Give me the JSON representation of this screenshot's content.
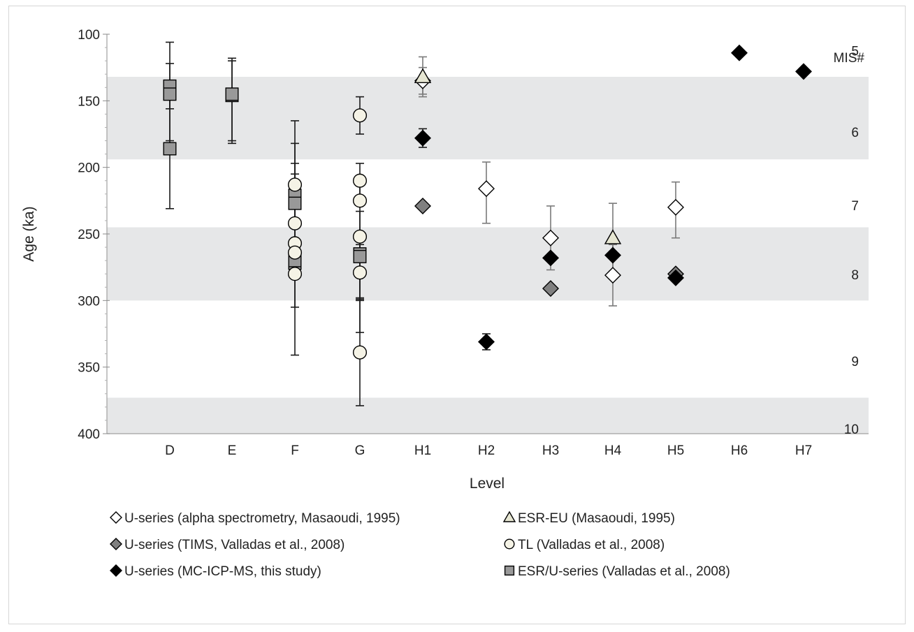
{
  "chart_data": {
    "type": "scatter",
    "xlabel": "Level",
    "ylabel": "Age (ka)",
    "ylim": [
      100,
      400
    ],
    "y_inverted": true,
    "y_ticks": [
      100,
      150,
      200,
      250,
      300,
      350,
      400
    ],
    "categories": [
      "D",
      "E",
      "F",
      "G",
      "H1",
      "H2",
      "H3",
      "H4",
      "H5",
      "H6",
      "H7"
    ],
    "mis_label": "MIS#",
    "mis_bands": [
      {
        "label": "5",
        "y": 104,
        "shaded": false
      },
      {
        "label": "6",
        "y": 165,
        "range": [
          132,
          194
        ],
        "shaded": true
      },
      {
        "label": "7",
        "y": 220,
        "shaded": false
      },
      {
        "label": "8",
        "y": 272,
        "range": [
          245,
          300
        ],
        "shaded": true
      },
      {
        "label": "9",
        "y": 337,
        "shaded": false
      },
      {
        "label": "10",
        "y": 388,
        "range": [
          373,
          400
        ],
        "shaded": true
      }
    ],
    "legend_placement": "bottom",
    "series": [
      {
        "name": "U-series (alpha spectrometry, Masaoudi, 1995)",
        "marker": "diamond",
        "fill": "#ffffff",
        "points": [
          {
            "x": "H1",
            "y": 135,
            "err": [
              125,
              145
            ]
          },
          {
            "x": "H2",
            "y": 216,
            "err": [
              196,
              242
            ]
          },
          {
            "x": "H3",
            "y": 253,
            "err": [
              229,
              277
            ]
          },
          {
            "x": "H4",
            "y": 281,
            "err": [
              258,
              304
            ]
          },
          {
            "x": "H5",
            "y": 230,
            "err": [
              211,
              253
            ]
          }
        ]
      },
      {
        "name": "ESR-EU (Masaoudi, 1995)",
        "marker": "triangle",
        "fill": "#e6e6d2",
        "points": [
          {
            "x": "H1",
            "y": 132,
            "err": [
              117,
              147
            ]
          },
          {
            "x": "H4",
            "y": 253,
            "err": [
              227,
              278
            ]
          }
        ]
      },
      {
        "name": "U-series (TIMS, Valladas et al., 2008)",
        "marker": "diamond",
        "fill": "#808080",
        "points": [
          {
            "x": "H1",
            "y": 229
          },
          {
            "x": "H3",
            "y": 291
          },
          {
            "x": "H5",
            "y": 280
          }
        ]
      },
      {
        "name": "TL (Valladas et al., 2008)",
        "marker": "circle",
        "fill": "#f5f3e6",
        "points": [
          {
            "x": "F",
            "y": 213
          },
          {
            "x": "F",
            "y": 242
          },
          {
            "x": "F",
            "y": 257
          },
          {
            "x": "F",
            "y": 264
          },
          {
            "x": "F",
            "y": 280
          },
          {
            "x": "G",
            "y": 161,
            "err": [
              147,
              175
            ]
          },
          {
            "x": "G",
            "y": 210,
            "err": [
              197,
              222
            ]
          },
          {
            "x": "G",
            "y": 225
          },
          {
            "x": "G",
            "y": 252
          },
          {
            "x": "G",
            "y": 279,
            "err": [
              258,
              300
            ]
          },
          {
            "x": "G",
            "y": 339,
            "err": [
              299,
              379
            ]
          }
        ]
      },
      {
        "name": "U-series (MC-ICP-MS, this study)",
        "marker": "diamond",
        "fill": "#000000",
        "points": [
          {
            "x": "H1",
            "y": 178,
            "err": [
              171,
              185
            ]
          },
          {
            "x": "H2",
            "y": 331,
            "err": [
              325,
              337
            ]
          },
          {
            "x": "H3",
            "y": 268
          },
          {
            "x": "H4",
            "y": 266
          },
          {
            "x": "H5",
            "y": 283
          },
          {
            "x": "H6",
            "y": 114
          },
          {
            "x": "H7",
            "y": 128
          }
        ]
      },
      {
        "name": "ESR/U-series (Valladas et al., 2008)",
        "marker": "square",
        "fill": "#999999",
        "points": [
          {
            "x": "D",
            "y": 139,
            "err": [
              122,
              156
            ]
          },
          {
            "x": "D",
            "y": 145,
            "err": [
              106,
              180
            ]
          },
          {
            "x": "D",
            "y": 186,
            "err": [
              141,
              231
            ]
          },
          {
            "x": "E",
            "y": 146,
            "err": [
              118,
              180
            ]
          },
          {
            "x": "E",
            "y": 145,
            "err": [
              120,
              182
            ]
          },
          {
            "x": "F",
            "y": 221,
            "err": [
              197,
              245
            ]
          },
          {
            "x": "F",
            "y": 227,
            "err": [
              182,
              272
            ]
          },
          {
            "x": "F",
            "y": 272,
            "err": [
              205,
              341
            ]
          },
          {
            "x": "F",
            "y": 270,
            "err": [
              165,
              305
            ]
          },
          {
            "x": "G",
            "y": 265,
            "err": [
              233,
              298
            ]
          },
          {
            "x": "G",
            "y": 267,
            "err": [
              210,
              324
            ]
          }
        ]
      }
    ],
    "legend_order": [
      0,
      1,
      2,
      3,
      4,
      5
    ]
  }
}
